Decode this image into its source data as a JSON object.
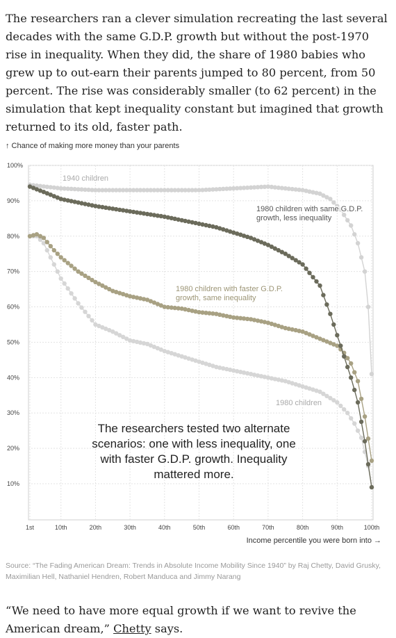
{
  "intro_paragraph": "The researchers ran a clever simulation recreating the last several decades with the same G.D.P. growth but without the post-1970 rise in inequality. When they did, the share of 1980 babies who grew up to out-earn their parents jumped to 80 percent, from 50 percent. The rise was considerably smaller (to 62 percent) in the simulation that kept inequality constant but imagined that growth returned to its old, faster path.",
  "chart_data": {
    "type": "scatter",
    "ylabel": "↑ Chance of making more money than your parents",
    "xlabel": "Income percentile you were born into →",
    "x_ticks": [
      "1st",
      "10th",
      "20th",
      "30th",
      "40th",
      "50th",
      "60th",
      "70th",
      "80th",
      "90th",
      "100th"
    ],
    "y_ticks": [
      "100%",
      "90%",
      "80%",
      "70%",
      "60%",
      "50%",
      "40%",
      "30%",
      "20%",
      "10%"
    ],
    "xlim": [
      1,
      100
    ],
    "ylim": [
      0,
      100
    ],
    "annotation": "The researchers tested two alternate scenarios: one with less inequality, one with faster G.D.P. growth. Inequality mattered more.",
    "series": [
      {
        "name": "1940 children",
        "color": "#d3d3d3",
        "points": [
          [
            1,
            94.5
          ],
          [
            10,
            93.5
          ],
          [
            20,
            93
          ],
          [
            30,
            93
          ],
          [
            40,
            93
          ],
          [
            50,
            93
          ],
          [
            60,
            93.5
          ],
          [
            70,
            94
          ],
          [
            75,
            93.5
          ],
          [
            80,
            93
          ],
          [
            85,
            92
          ],
          [
            88,
            90.5
          ],
          [
            91,
            87.5
          ],
          [
            94,
            83
          ],
          [
            96,
            78
          ],
          [
            98,
            70
          ],
          [
            99,
            60
          ],
          [
            100,
            41
          ]
        ]
      },
      {
        "name": "1980 children with same G.D.P. growth, less inequality",
        "color": "#6b6b5b",
        "points": [
          [
            1,
            94
          ],
          [
            5,
            92.5
          ],
          [
            10,
            90.5
          ],
          [
            20,
            88.5
          ],
          [
            30,
            87
          ],
          [
            40,
            85.5
          ],
          [
            45,
            84.5
          ],
          [
            50,
            83.5
          ],
          [
            55,
            82.5
          ],
          [
            60,
            81
          ],
          [
            65,
            79.5
          ],
          [
            70,
            77.5
          ],
          [
            75,
            75
          ],
          [
            80,
            72
          ],
          [
            85,
            66
          ],
          [
            88,
            58
          ],
          [
            90,
            52
          ],
          [
            92,
            46
          ],
          [
            94,
            40
          ],
          [
            96,
            33
          ],
          [
            98,
            22
          ],
          [
            100,
            9
          ]
        ]
      },
      {
        "name": "1980 children with faster G.D.P. growth, same inequality",
        "color": "#a8a183",
        "points": [
          [
            1,
            80
          ],
          [
            3,
            80.5
          ],
          [
            5,
            79.5
          ],
          [
            8,
            76
          ],
          [
            10,
            74
          ],
          [
            15,
            70
          ],
          [
            20,
            67
          ],
          [
            25,
            64.5
          ],
          [
            30,
            63
          ],
          [
            35,
            62
          ],
          [
            40,
            60
          ],
          [
            45,
            59.5
          ],
          [
            50,
            58.5
          ],
          [
            55,
            58
          ],
          [
            60,
            57
          ],
          [
            65,
            56.5
          ],
          [
            70,
            55.5
          ],
          [
            75,
            54
          ],
          [
            80,
            53
          ],
          [
            85,
            51
          ],
          [
            90,
            49
          ],
          [
            92,
            47
          ],
          [
            94,
            44
          ],
          [
            96,
            39
          ],
          [
            98,
            29
          ],
          [
            100,
            16.5
          ]
        ]
      },
      {
        "name": "1980 children",
        "color": "#d6d6d6",
        "points": [
          [
            1,
            80
          ],
          [
            3,
            80
          ],
          [
            5,
            78
          ],
          [
            7,
            74
          ],
          [
            10,
            68
          ],
          [
            15,
            61
          ],
          [
            20,
            55
          ],
          [
            25,
            53
          ],
          [
            30,
            50.5
          ],
          [
            35,
            49.5
          ],
          [
            40,
            47.5
          ],
          [
            45,
            46
          ],
          [
            50,
            44.5
          ],
          [
            55,
            43
          ],
          [
            60,
            42
          ],
          [
            65,
            41
          ],
          [
            70,
            40
          ],
          [
            75,
            39
          ],
          [
            80,
            37.5
          ],
          [
            85,
            36
          ],
          [
            90,
            33
          ],
          [
            93,
            30
          ],
          [
            95,
            27
          ],
          [
            97,
            23
          ],
          [
            99,
            15
          ],
          [
            100,
            9
          ]
        ]
      }
    ],
    "labels": [
      {
        "series": 0,
        "text_lines": [
          "1940 children"
        ]
      },
      {
        "series": 1,
        "text_lines": [
          "1980 children with same G.D.P.",
          "growth, less inequality"
        ]
      },
      {
        "series": 2,
        "text_lines": [
          "1980 children with faster G.D.P.",
          "growth, same inequality"
        ]
      },
      {
        "series": 3,
        "text_lines": [
          "1980 children"
        ]
      }
    ]
  },
  "source_text": "Source: “The Fading American Dream: Trends in Absolute Income Mobility Since 1940” by Raj Chetty, David Grusky, Maximilian Hell, Nathaniel Hendren, Robert Manduca and Jimmy Narang",
  "quote": {
    "before": "“We need to have more equal growth if we want to revive the American dream,” ",
    "link": "Chetty",
    "after": " says."
  }
}
